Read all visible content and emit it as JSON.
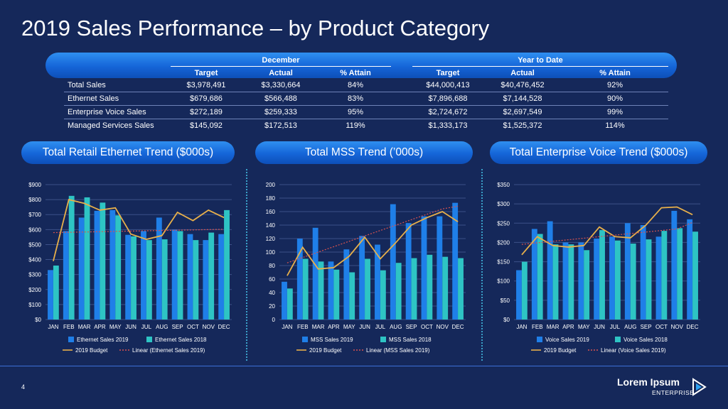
{
  "title": "2019 Sales Performance – by Product Category",
  "kpi_table": {
    "group_headers": [
      "December",
      "Year to Date"
    ],
    "sub_headers": [
      "Target",
      "Actual",
      "% Attain",
      "Target",
      "Actual",
      "% Attain"
    ],
    "rows": [
      {
        "label": "Total Sales",
        "cells": [
          "$3,978,491",
          "$3,330,664",
          "84%",
          "$44,000,413",
          "$40,476,452",
          "92%"
        ]
      },
      {
        "label": "Ethernet Sales",
        "cells": [
          "$679,686",
          "$566,488",
          "83%",
          "$7,896,688",
          "$7,144,528",
          "90%"
        ]
      },
      {
        "label": "Enterprise Voice Sales",
        "cells": [
          "$272,189",
          "$259,333",
          "95%",
          "$2,724,672",
          "$2,697,549",
          "99%"
        ]
      },
      {
        "label": "Managed Services Sales",
        "cells": [
          "$145,092",
          "$172,513",
          "119%",
          "$1,333,173",
          "$1,525,372",
          "114%"
        ]
      }
    ]
  },
  "colors": {
    "background": "#15285a",
    "bar_2019": "#1f7fe8",
    "bar_2018": "#2ec4c4",
    "budget_line": "#e8b04a",
    "trend_line": "#d9534f",
    "grid": "#3c5188",
    "tick_text": "#ffffff"
  },
  "chart_data": [
    {
      "type": "bar",
      "title": "Total Retail Ethernet Trend ($000s)",
      "categories": [
        "JAN",
        "FEB",
        "MAR",
        "APR",
        "MAY",
        "JUN",
        "JUL",
        "AUG",
        "SEP",
        "OCT",
        "NOV",
        "DEC"
      ],
      "ylim": [
        0,
        900
      ],
      "yticks": [
        0,
        100,
        200,
        300,
        400,
        500,
        600,
        700,
        800,
        900
      ],
      "ytick_labels": [
        "$0",
        "$100",
        "$200",
        "$300",
        "$400",
        "$500",
        "$600",
        "$700",
        "$800",
        "$900"
      ],
      "series": [
        {
          "name": "Ethernet Sales 2019",
          "kind": "bar",
          "values": [
            330,
            590,
            680,
            725,
            730,
            565,
            590,
            680,
            600,
            570,
            530,
            570
          ]
        },
        {
          "name": "Ethernet Sales 2018",
          "kind": "bar",
          "values": [
            360,
            825,
            815,
            780,
            695,
            555,
            530,
            535,
            590,
            530,
            580,
            730
          ]
        },
        {
          "name": "2019 Budget",
          "kind": "line",
          "values": [
            390,
            800,
            775,
            730,
            745,
            570,
            535,
            560,
            715,
            660,
            730,
            680
          ]
        },
        {
          "name": "Linear (Ethernet Sales 2019)",
          "kind": "trend",
          "values": [
            580,
            582,
            584,
            586,
            588,
            590,
            592,
            594,
            596,
            598,
            600,
            602
          ]
        }
      ],
      "legend": [
        "Ethernet Sales 2019",
        "Ethernet Sales 2018",
        "2019 Budget",
        "Linear (Ethernet Sales 2019)"
      ],
      "legend_position": "bottom",
      "grid": true
    },
    {
      "type": "bar",
      "title": "Total MSS Trend (’000s)",
      "categories": [
        "JAN",
        "FEB",
        "MAR",
        "APR",
        "MAY",
        "JUN",
        "JUL",
        "AUG",
        "SEP",
        "OCT",
        "NOV",
        "DEC"
      ],
      "ylim": [
        0,
        200
      ],
      "yticks": [
        0,
        20,
        40,
        60,
        80,
        100,
        120,
        140,
        160,
        180,
        200
      ],
      "ytick_labels": [
        "0",
        "20",
        "40",
        "60",
        "80",
        "100",
        "120",
        "140",
        "160",
        "180",
        "200"
      ],
      "series": [
        {
          "name": "MSS Sales 2019",
          "kind": "bar",
          "values": [
            56,
            120,
            136,
            86,
            104,
            124,
            111,
            171,
            143,
            153,
            153,
            173
          ]
        },
        {
          "name": "MSS Sales 2018",
          "kind": "bar",
          "values": [
            46,
            90,
            86,
            74,
            70,
            90,
            73,
            84,
            91,
            96,
            93,
            91
          ]
        },
        {
          "name": "2019 Budget",
          "kind": "line",
          "values": [
            65,
            107,
            75,
            77,
            94,
            122,
            90,
            114,
            140,
            151,
            160,
            145
          ]
        },
        {
          "name": "Linear (MSS Sales 2019)",
          "kind": "trend",
          "values": [
            84,
            92,
            100,
            108,
            116,
            124,
            132,
            140,
            148,
            156,
            164,
            168
          ]
        }
      ],
      "legend": [
        "MSS Sales 2019",
        "MSS Sales 2018",
        "2019 Budget",
        "Linear (MSS Sales 2019)"
      ],
      "legend_position": "bottom",
      "grid": true
    },
    {
      "type": "bar",
      "title": "Total Enterprise Voice Trend ($000s)",
      "categories": [
        "JAN",
        "FEB",
        "MAR",
        "APR",
        "MAY",
        "JUN",
        "JUL",
        "AUG",
        "SEP",
        "OCT",
        "NOV",
        "DEC"
      ],
      "ylim": [
        0,
        350
      ],
      "yticks": [
        0,
        50,
        100,
        150,
        200,
        250,
        300,
        350
      ],
      "ytick_labels": [
        "$0",
        "$50",
        "$100",
        "$150",
        "$200",
        "$250",
        "$300",
        "$350"
      ],
      "series": [
        {
          "name": "Voice Sales 2019",
          "kind": "bar",
          "values": [
            128,
            235,
            255,
            200,
            200,
            210,
            215,
            250,
            245,
            215,
            282,
            260
          ]
        },
        {
          "name": "Voice Sales 2018",
          "kind": "bar",
          "values": [
            150,
            222,
            195,
            195,
            180,
            232,
            205,
            197,
            208,
            230,
            237,
            228
          ]
        },
        {
          "name": "2019 Budget",
          "kind": "line",
          "values": [
            168,
            215,
            192,
            188,
            192,
            240,
            215,
            212,
            245,
            290,
            292,
            272
          ]
        },
        {
          "name": "Linear (Voice Sales 2019)",
          "kind": "trend",
          "values": [
            195,
            199,
            203,
            207,
            211,
            215,
            219,
            223,
            227,
            231,
            235,
            252
          ]
        }
      ],
      "legend": [
        "Voice Sales 2019",
        "Voice Sales 2018",
        "2019 Budget",
        "Linear (Voice Sales 2019)"
      ],
      "legend_position": "bottom",
      "grid": true
    }
  ],
  "footer": {
    "page_number": "4",
    "logo_name": "Lorem Ipsum",
    "logo_sub": "ENTERPRISE",
    "logo_icon": "play-arrow-logo-icon"
  }
}
